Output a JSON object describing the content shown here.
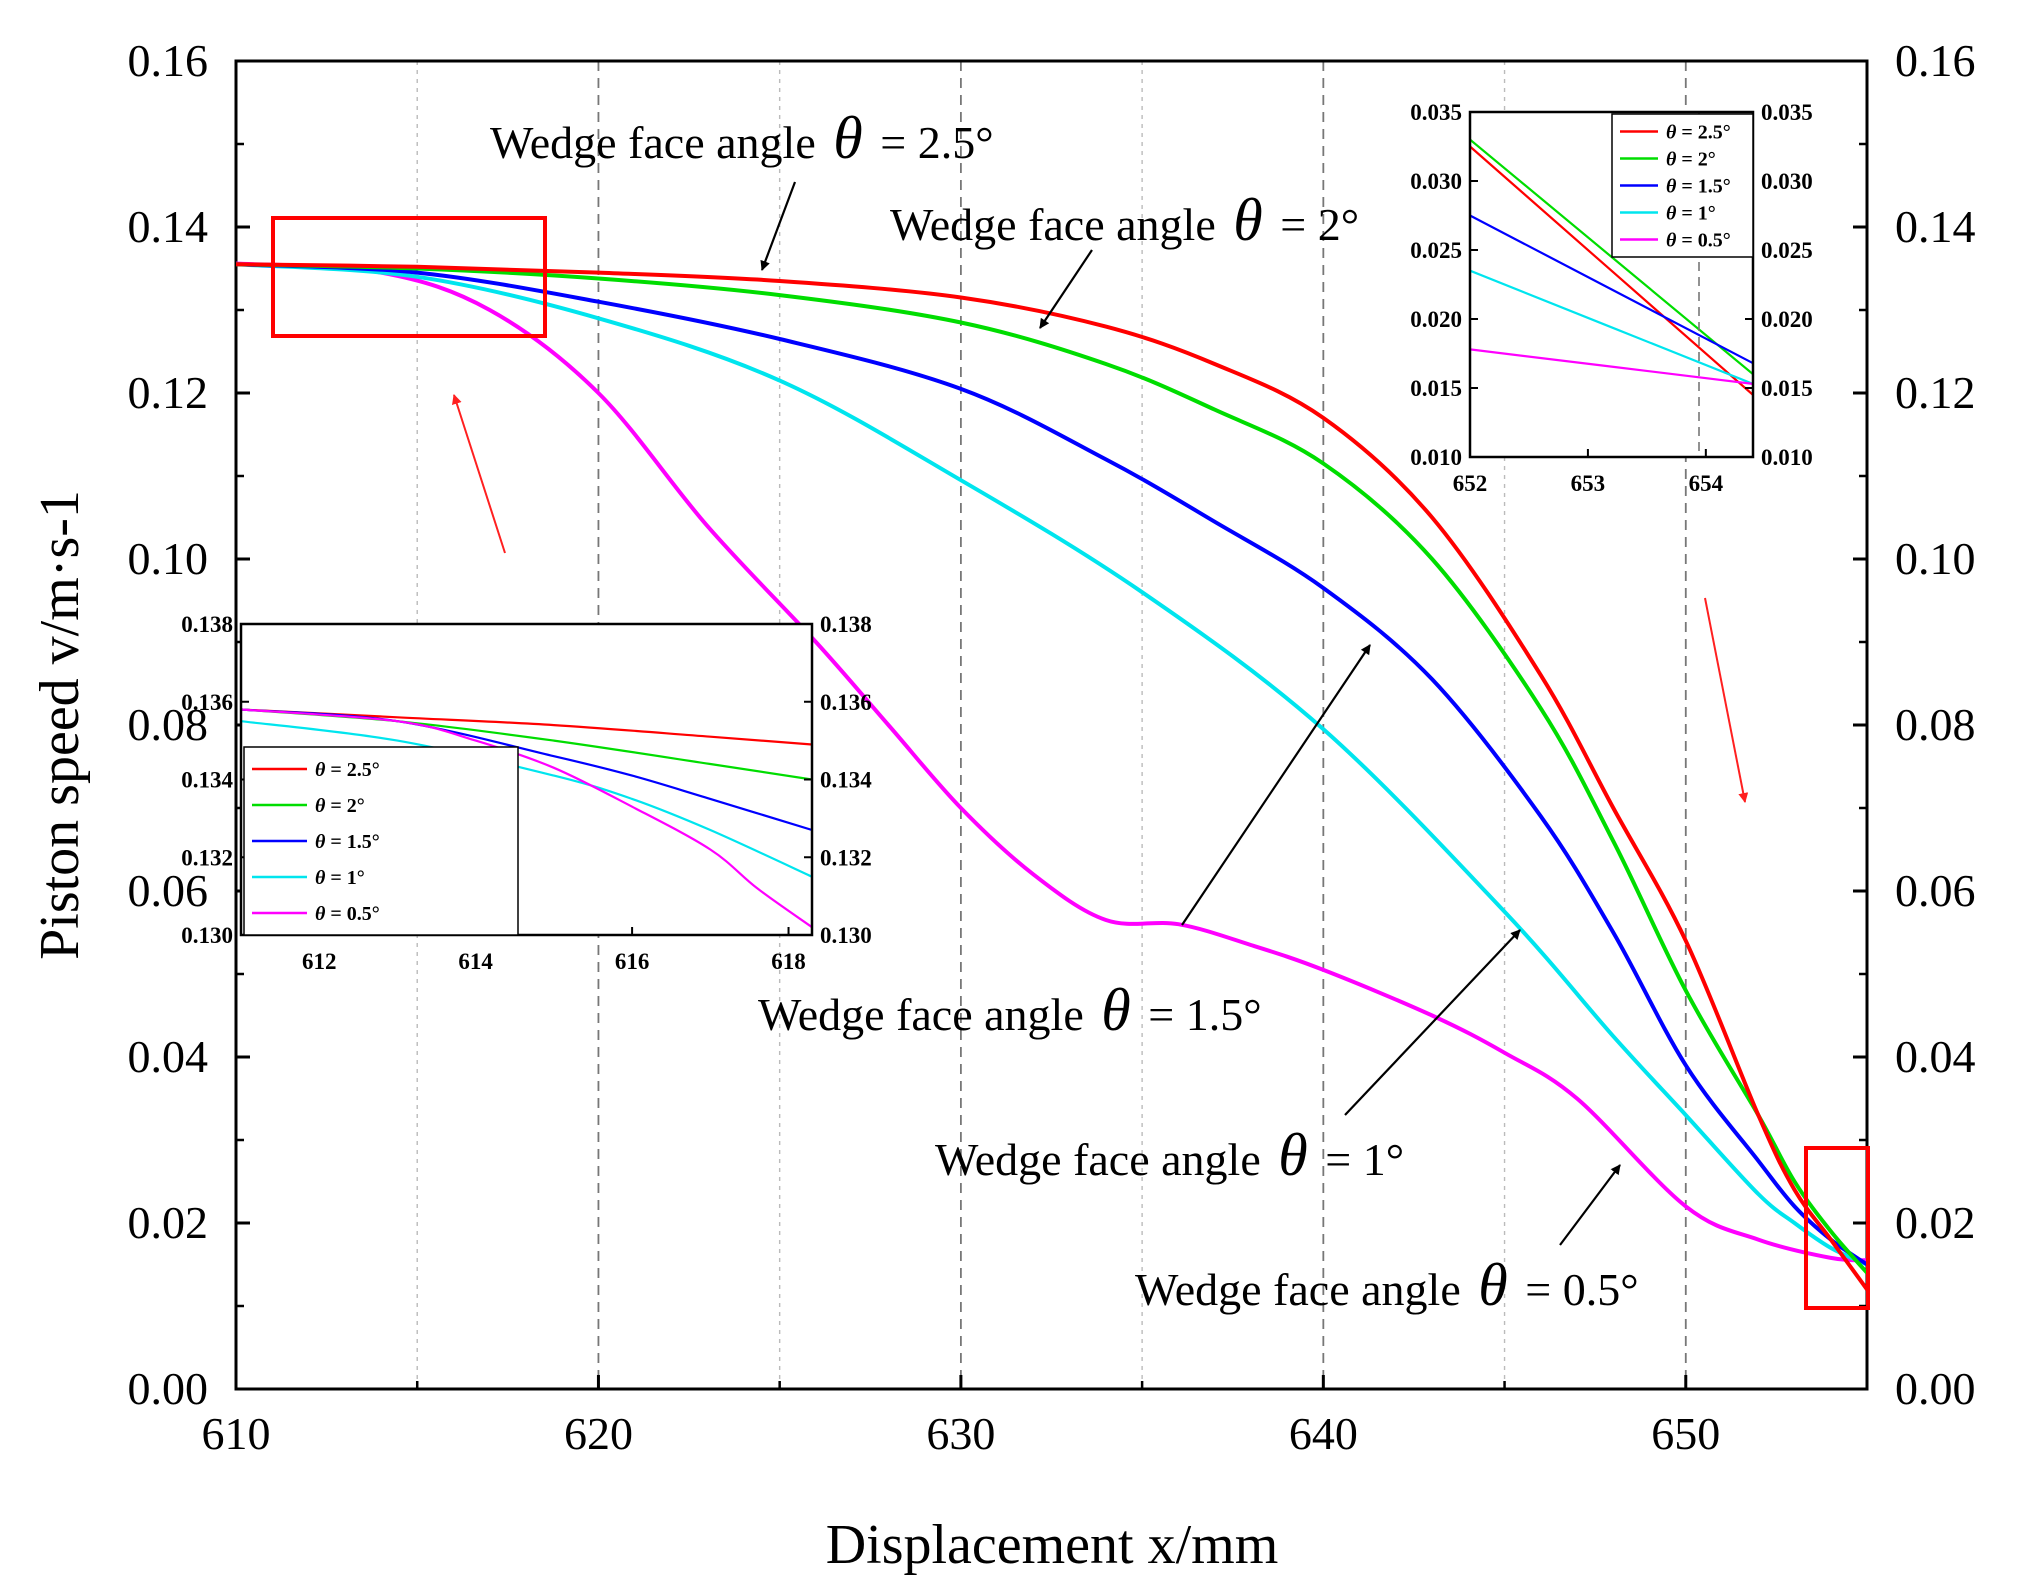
{
  "chart_data": {
    "type": "line",
    "xlabel": "Displacement x/mm",
    "ylabel": "Piston speed v/m·s-1",
    "xlim": [
      610,
      655
    ],
    "ylim": [
      0,
      0.16
    ],
    "xticks": [
      610,
      620,
      630,
      640,
      650
    ],
    "yticks": [
      0.0,
      0.02,
      0.04,
      0.06,
      0.08,
      0.1,
      0.12,
      0.14,
      0.16
    ],
    "ytick_labels": [
      "0.00",
      "0.02",
      "0.04",
      "0.06",
      "0.08",
      "0.10",
      "0.12",
      "0.14",
      "0.16"
    ],
    "right_axis_mirror": true,
    "grid": "vertical dashed",
    "series": [
      {
        "name": "θ = 2.5°",
        "color": "#ff0000",
        "x": [
          610,
          615,
          620,
          625,
          630,
          634,
          637,
          640,
          643,
          646,
          648,
          650,
          652,
          653,
          654,
          655
        ],
        "y": [
          0.1355,
          0.1352,
          0.1345,
          0.1335,
          0.1315,
          0.128,
          0.1235,
          0.117,
          0.105,
          0.086,
          0.07,
          0.054,
          0.033,
          0.024,
          0.018,
          0.012
        ]
      },
      {
        "name": "θ = 2°",
        "color": "#00dd00",
        "x": [
          610,
          615,
          620,
          625,
          630,
          634,
          637,
          640,
          643,
          646,
          648,
          650,
          652,
          653,
          654,
          655
        ],
        "y": [
          0.1355,
          0.135,
          0.1338,
          0.1318,
          0.1285,
          0.1235,
          0.118,
          0.1115,
          0.1,
          0.082,
          0.066,
          0.048,
          0.033,
          0.025,
          0.019,
          0.014
        ]
      },
      {
        "name": "θ = 1.5°",
        "color": "#0000ff",
        "x": [
          610,
          615,
          620,
          625,
          630,
          634,
          637,
          640,
          643,
          646,
          648,
          650,
          652,
          653,
          654,
          655
        ],
        "y": [
          0.1355,
          0.1345,
          0.131,
          0.1265,
          0.1205,
          0.112,
          0.1045,
          0.0965,
          0.0855,
          0.069,
          0.055,
          0.039,
          0.0275,
          0.022,
          0.018,
          0.015
        ]
      },
      {
        "name": "θ = 1°",
        "color": "#00e5ee",
        "x": [
          610,
          615,
          620,
          625,
          630,
          635,
          640,
          645,
          648,
          650,
          652,
          653,
          654,
          655
        ],
        "y": [
          0.1355,
          0.134,
          0.129,
          0.1215,
          0.1095,
          0.096,
          0.0795,
          0.0575,
          0.0425,
          0.033,
          0.0235,
          0.02,
          0.017,
          0.015
        ]
      },
      {
        "name": "θ = 0.5°",
        "color": "#ff00ff",
        "x": [
          610,
          614,
          617,
          620,
          623,
          626,
          628,
          630,
          632,
          634,
          636,
          638,
          640,
          643,
          645,
          647,
          650,
          652,
          654,
          655
        ],
        "y": [
          0.1356,
          0.1345,
          0.13,
          0.12,
          0.104,
          0.09,
          0.08,
          0.07,
          0.062,
          0.0565,
          0.056,
          0.0535,
          0.0505,
          0.045,
          0.0405,
          0.035,
          0.022,
          0.018,
          0.0158,
          0.0155
        ]
      }
    ],
    "annotations": [
      {
        "text": "Wedge face angle",
        "symbol": "θ",
        "value": "= 2.5°"
      },
      {
        "text": "Wedge face angle",
        "symbol": "θ",
        "value": "= 2°"
      },
      {
        "text": "Wedge face angle",
        "symbol": "θ",
        "value": "= 1.5°"
      },
      {
        "text": "Wedge face angle",
        "symbol": "θ",
        "value": "= 1°"
      },
      {
        "text": "Wedge face angle",
        "symbol": "θ",
        "value": "= 0.5°"
      }
    ],
    "insets": [
      {
        "name": "zoom-start",
        "xlim": [
          611,
          618.3
        ],
        "ylim": [
          0.13,
          0.138
        ],
        "xticks": [
          612,
          614,
          616,
          618
        ],
        "yticks": [
          0.13,
          0.132,
          0.134,
          0.136,
          0.138
        ],
        "ytick_labels": [
          "0.130",
          "0.132",
          "0.134",
          "0.136",
          "0.138"
        ],
        "legend": [
          "θ = 2.5°",
          "θ = 2°",
          "θ = 1.5°",
          "θ = 1°",
          "θ = 0.5°"
        ],
        "legend_position": "lower-left",
        "series": [
          {
            "name": "θ = 2.5°",
            "color": "#ff0000",
            "x": [
              611,
              613,
              615,
              617,
              618.3
            ],
            "y": [
              0.1358,
              0.1356,
              0.1354,
              0.1351,
              0.1349
            ]
          },
          {
            "name": "θ = 2°",
            "color": "#00dd00",
            "x": [
              611,
              613,
              615,
              617,
              618.3
            ],
            "y": [
              0.1358,
              0.1355,
              0.135,
              0.1344,
              0.134
            ]
          },
          {
            "name": "θ = 1.5°",
            "color": "#0000ff",
            "x": [
              611,
              613,
              615,
              616,
              617,
              618.3
            ],
            "y": [
              0.1358,
              0.1355,
              0.1346,
              0.1341,
              0.1335,
              0.1327
            ]
          },
          {
            "name": "θ = 1°",
            "color": "#00e5ee",
            "x": [
              611,
              613,
              615,
              616,
              617,
              618.3
            ],
            "y": [
              0.1355,
              0.135,
              0.1341,
              0.1335,
              0.1327,
              0.1315
            ]
          },
          {
            "name": "θ = 0.5°",
            "color": "#ff00ff",
            "x": [
              611,
              613,
              614,
              615,
              616,
              617,
              617.6,
              618.3
            ],
            "y": [
              0.1358,
              0.1355,
              0.135,
              0.1343,
              0.1333,
              0.1322,
              0.1312,
              0.1302
            ]
          }
        ]
      },
      {
        "name": "zoom-end",
        "xlim": [
          652,
          654.4
        ],
        "ylim": [
          0.01,
          0.035
        ],
        "xticks": [
          652,
          653,
          654
        ],
        "yticks": [
          0.01,
          0.015,
          0.02,
          0.025,
          0.03,
          0.035
        ],
        "ytick_labels": [
          "0.010",
          "0.015",
          "0.020",
          "0.025",
          "0.030",
          "0.035"
        ],
        "legend": [
          "θ = 2.5°",
          "θ = 2°",
          "θ = 1.5°",
          "θ = 1°",
          "θ = 0.5°"
        ],
        "legend_position": "top-right",
        "series": [
          {
            "name": "θ = 2.5°",
            "color": "#ff0000",
            "x": [
              652,
              654.4
            ],
            "y": [
              0.0325,
              0.0145
            ]
          },
          {
            "name": "θ = 2°",
            "color": "#00dd00",
            "x": [
              652,
              654.4
            ],
            "y": [
              0.033,
              0.016
            ]
          },
          {
            "name": "θ = 1.5°",
            "color": "#0000ff",
            "x": [
              652,
              654.4
            ],
            "y": [
              0.0275,
              0.0168
            ]
          },
          {
            "name": "θ = 1°",
            "color": "#00e5ee",
            "x": [
              652,
              654.4
            ],
            "y": [
              0.0235,
              0.0153
            ]
          },
          {
            "name": "θ = 0.5°",
            "color": "#ff00ff",
            "x": [
              652,
              654.4
            ],
            "y": [
              0.0178,
              0.0153
            ]
          }
        ]
      }
    ]
  }
}
